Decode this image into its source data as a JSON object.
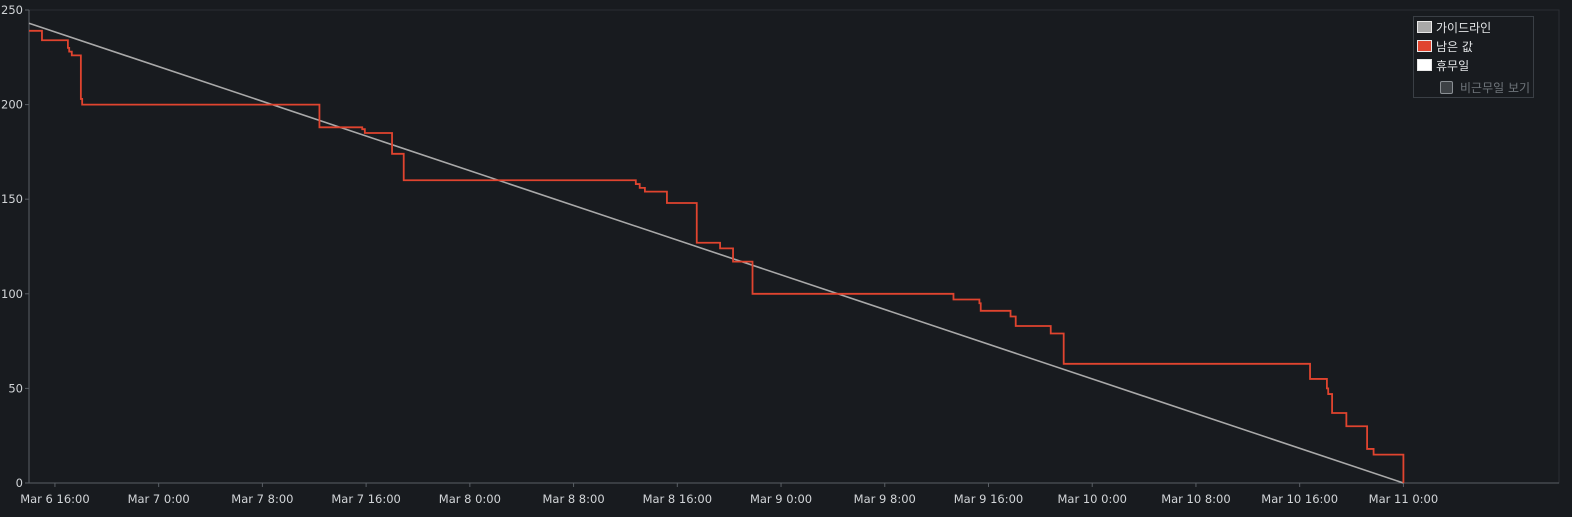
{
  "chart_data": {
    "type": "line",
    "ylim": [
      0,
      250
    ],
    "y_ticks": [
      0,
      50,
      100,
      150,
      200,
      250
    ],
    "x_range_hours": [
      -2,
      116
    ],
    "x_ticks": [
      {
        "h": 0,
        "label": "Mar 6 16:00"
      },
      {
        "h": 8,
        "label": "Mar 7 0:00"
      },
      {
        "h": 16,
        "label": "Mar 7 8:00"
      },
      {
        "h": 24,
        "label": "Mar 7 16:00"
      },
      {
        "h": 32,
        "label": "Mar 8 0:00"
      },
      {
        "h": 40,
        "label": "Mar 8 8:00"
      },
      {
        "h": 48,
        "label": "Mar 8 16:00"
      },
      {
        "h": 56,
        "label": "Mar 9 0:00"
      },
      {
        "h": 64,
        "label": "Mar 9 8:00"
      },
      {
        "h": 72,
        "label": "Mar 9 16:00"
      },
      {
        "h": 80,
        "label": "Mar 10 0:00"
      },
      {
        "h": 88,
        "label": "Mar 10 8:00"
      },
      {
        "h": 96,
        "label": "Mar 10 16:00"
      },
      {
        "h": 104,
        "label": "Mar 11 0:00"
      }
    ],
    "series": [
      {
        "name": "가이드라인",
        "color": "#a9a9a9",
        "kind": "line",
        "points": [
          [
            -2,
            243
          ],
          [
            104,
            0
          ]
        ]
      },
      {
        "name": "남은 값",
        "color": "#e0442f",
        "kind": "step",
        "points": [
          [
            -2,
            239
          ],
          [
            -1,
            234
          ],
          [
            1,
            230
          ],
          [
            1.1,
            228
          ],
          [
            1.3,
            226
          ],
          [
            2,
            203
          ],
          [
            2.1,
            200
          ],
          [
            20.4,
            188
          ],
          [
            23.7,
            187
          ],
          [
            23.9,
            185
          ],
          [
            26,
            174
          ],
          [
            26.9,
            160
          ],
          [
            44.8,
            158
          ],
          [
            45.1,
            156
          ],
          [
            45.5,
            154
          ],
          [
            47.2,
            148
          ],
          [
            49.5,
            127
          ],
          [
            51.3,
            124
          ],
          [
            52.3,
            117
          ],
          [
            53.8,
            100
          ],
          [
            69.3,
            97
          ],
          [
            71.3,
            95
          ],
          [
            71.4,
            91
          ],
          [
            73.7,
            88
          ],
          [
            74.1,
            83
          ],
          [
            76.8,
            79
          ],
          [
            77.8,
            63
          ],
          [
            96.8,
            55
          ],
          [
            98.1,
            50
          ],
          [
            98.2,
            47
          ],
          [
            98.5,
            37
          ],
          [
            99.6,
            30
          ],
          [
            101.2,
            18
          ],
          [
            101.7,
            15
          ],
          [
            104,
            0
          ]
        ]
      },
      {
        "name": "휴무일",
        "color": "#ffffff",
        "kind": "bands",
        "points": []
      }
    ]
  },
  "legend": {
    "items": [
      {
        "label": "가이드라인",
        "color": "#a9a9a9"
      },
      {
        "label": "남은 값",
        "color": "#e0442f"
      },
      {
        "label": "휴무일",
        "color": "#ffffff"
      }
    ],
    "option_label": "비근무일 보기",
    "option_checked": false
  }
}
